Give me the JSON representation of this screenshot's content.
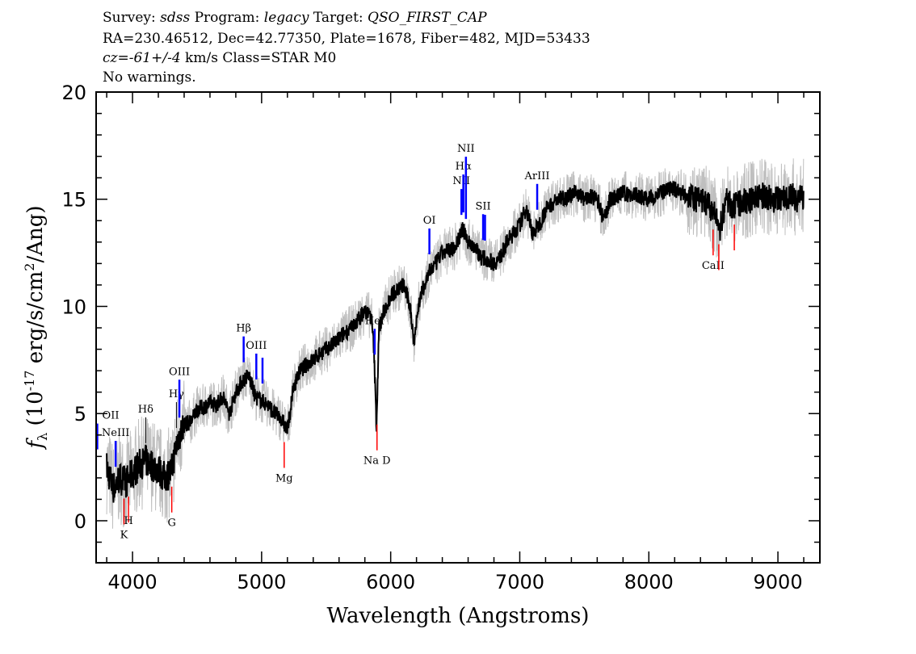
{
  "header": {
    "survey_label": "Survey:",
    "survey": "sdss",
    "program_label": "Program:",
    "program": "legacy",
    "target_label": "Target:",
    "target": "QSO_FIRST_CAP",
    "line2": "RA=230.46512, Dec=42.77350, Plate=1678, Fiber=482, MJD=53433",
    "cz": "cz=-61+/-4",
    "cz_rest": " km/s Class=STAR M0",
    "warnings": "No warnings."
  },
  "chart_data": {
    "type": "line",
    "xlabel": "Wavelength (Angstroms)",
    "ylabel": "f_λ (10^-17 erg/s/cm^2/Ang)",
    "xlim": [
      3718,
      9325
    ],
    "ylim": [
      -1.96,
      20
    ],
    "xticks": [
      4000,
      5000,
      6000,
      7000,
      8000,
      9000
    ],
    "yticks": [
      0,
      5,
      10,
      15,
      20
    ],
    "grid": false,
    "colors": {
      "spectrum": "#000000",
      "raw": "#bfbfbf",
      "emission": "#0000ff",
      "absorption": "#ff0000",
      "balmer": "#000000"
    },
    "spectrum": {
      "x": [
        3800,
        3850,
        3900,
        3950,
        4000,
        4050,
        4100,
        4150,
        4200,
        4250,
        4300,
        4350,
        4400,
        4450,
        4500,
        4550,
        4600,
        4650,
        4700,
        4750,
        4800,
        4850,
        4900,
        4950,
        5000,
        5050,
        5100,
        5150,
        5200,
        5250,
        5300,
        5350,
        5400,
        5450,
        5500,
        5550,
        5600,
        5650,
        5700,
        5750,
        5800,
        5850,
        5870,
        5890,
        5910,
        5950,
        6000,
        6050,
        6100,
        6150,
        6180,
        6220,
        6250,
        6300,
        6350,
        6400,
        6450,
        6500,
        6560,
        6600,
        6650,
        6700,
        6750,
        6800,
        6850,
        6900,
        6950,
        7000,
        7050,
        7100,
        7150,
        7200,
        7250,
        7300,
        7350,
        7400,
        7450,
        7500,
        7550,
        7600,
        7650,
        7700,
        7750,
        7800,
        7850,
        7900,
        7950,
        8000,
        8050,
        8100,
        8150,
        8200,
        8250,
        8300,
        8350,
        8400,
        8450,
        8500,
        8550,
        8600,
        8650,
        8700,
        8750,
        8800,
        8850,
        8900,
        8950,
        9000,
        9050,
        9100,
        9150,
        9200
      ],
      "y": [
        2.5,
        1.5,
        2.0,
        1.8,
        2.2,
        2.6,
        2.8,
        2.6,
        2.4,
        2.0,
        2.3,
        3.8,
        4.5,
        4.6,
        5.2,
        5.3,
        5.5,
        5.4,
        5.8,
        5.0,
        6.0,
        6.5,
        6.8,
        5.8,
        5.6,
        5.4,
        5.0,
        4.8,
        4.2,
        6.3,
        7.0,
        7.3,
        7.5,
        7.8,
        8.0,
        8.2,
        8.5,
        8.8,
        9.0,
        9.4,
        9.8,
        9.5,
        8.0,
        4.4,
        9.0,
        9.8,
        10.5,
        10.8,
        11.0,
        10.0,
        8.4,
        10.2,
        10.8,
        11.6,
        12.0,
        12.5,
        12.6,
        12.8,
        13.6,
        13.0,
        12.8,
        12.3,
        12.2,
        12.0,
        12.3,
        13.0,
        13.4,
        13.8,
        14.6,
        13.4,
        13.8,
        14.5,
        14.8,
        15.0,
        15.1,
        15.2,
        15.3,
        15.0,
        15.1,
        15.0,
        14.0,
        15.0,
        15.1,
        15.3,
        15.2,
        15.2,
        15.1,
        15.0,
        15.2,
        15.3,
        15.4,
        15.5,
        15.3,
        15.2,
        15.0,
        15.0,
        14.8,
        14.4,
        13.6,
        15.0,
        14.6,
        14.8,
        14.9,
        15.0,
        15.1,
        15.2,
        15.0,
        15.0,
        15.1,
        15.2,
        15.0,
        15.1
      ]
    },
    "lines": [
      {
        "label": "OII",
        "wave": 3727,
        "kind": "emission"
      },
      {
        "label": "NeIII",
        "wave": 3869,
        "kind": "emission"
      },
      {
        "label": "Hδ",
        "wave": 4102,
        "kind": "balmer"
      },
      {
        "label": "Hγ",
        "wave": 4340,
        "kind": "balmer"
      },
      {
        "label": "OIII",
        "wave": 4363,
        "kind": "emission"
      },
      {
        "label": "Hβ",
        "wave": 4861,
        "kind": "emission"
      },
      {
        "label": "OIII",
        "wave": 4959,
        "kind": "emission"
      },
      {
        "label": "",
        "wave": 5007,
        "kind": "emission"
      },
      {
        "label": "HeI",
        "wave": 5876,
        "kind": "emission"
      },
      {
        "label": "OI",
        "wave": 6300,
        "kind": "emission"
      },
      {
        "label": "NII",
        "wave": 6548,
        "kind": "emission"
      },
      {
        "label": "Hα",
        "wave": 6563,
        "kind": "emission"
      },
      {
        "label": "NII",
        "wave": 6583,
        "kind": "emission"
      },
      {
        "label": "SII",
        "wave": 6716,
        "kind": "emission"
      },
      {
        "label": "",
        "wave": 6731,
        "kind": "emission"
      },
      {
        "label": "ArIII",
        "wave": 7135,
        "kind": "emission"
      },
      {
        "label": "K",
        "wave": 3934,
        "kind": "absorption"
      },
      {
        "label": "H",
        "wave": 3969,
        "kind": "absorption"
      },
      {
        "label": "G",
        "wave": 4304,
        "kind": "absorption"
      },
      {
        "label": "Mg",
        "wave": 5175,
        "kind": "absorption"
      },
      {
        "label": "Na D",
        "wave": 5894,
        "kind": "absorption"
      },
      {
        "label": "CaII",
        "wave": 8498,
        "kind": "absorption"
      },
      {
        "label": "",
        "wave": 8542,
        "kind": "absorption"
      },
      {
        "label": "",
        "wave": 8662,
        "kind": "absorption"
      }
    ]
  }
}
